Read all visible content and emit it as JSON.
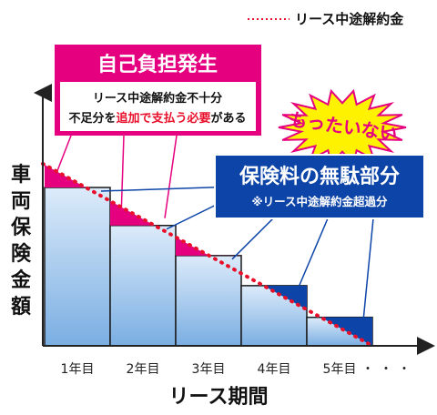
{
  "chart_data": {
    "type": "bar",
    "title": "",
    "xlabel": "リース期間",
    "ylabel": "車両保険金額",
    "categories": [
      "1年目",
      "2年目",
      "3年目",
      "4年目",
      "5年目"
    ],
    "x_trailing": "・・・",
    "ylim": [
      0,
      100
    ],
    "grid": false,
    "series": [
      {
        "values": [
          100,
          76,
          57,
          38,
          18
        ]
      }
    ],
    "line_series": {
      "name": "リース中途解約金",
      "color": "#e8102a",
      "style": "dotted",
      "from": 115,
      "to": 0
    },
    "legend": {
      "position": "top-right",
      "label": "リース中途解約金"
    },
    "colors": {
      "bar_top": "#d9e8f8",
      "bar_bottom": "#7fb0e2",
      "bar_edge": "#1a1a1a",
      "shortfall": "#e4007f",
      "excess": "#0c44a8",
      "callout_pink": "#e4007f",
      "callout_blue": "#0c44a8"
    }
  },
  "annotations": {
    "shortfall_title": "自己負担発生",
    "shortfall_line1": "リース中途解約金不十分",
    "shortfall_line2_a": "不足分を",
    "shortfall_line2_b": "追加で支払う必要",
    "shortfall_line2_c": "がある",
    "excess_title": "保険料の無駄部分",
    "excess_sub": "※リース中途解約金超過分",
    "burst": "もったいない"
  }
}
